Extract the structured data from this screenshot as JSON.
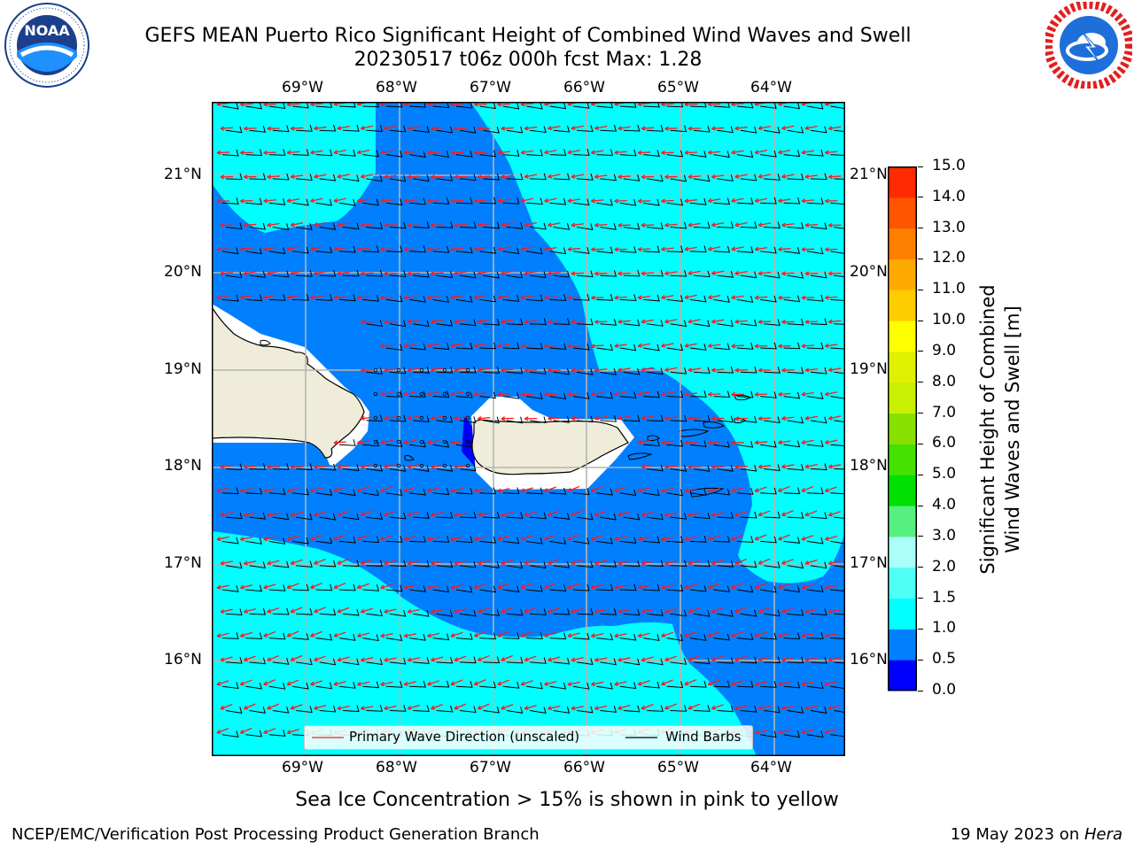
{
  "title": {
    "line1": "GEFS MEAN Puerto Rico Significant Height of Combined Wind Waves and Swell",
    "line2": "20230517 t06z 000h fcst   Max: 1.28"
  },
  "logos": {
    "noaa": {
      "text": "NOAA",
      "ring_text": "NATIONAL OCEANIC AND ATMOSPHERIC ADMINISTRATION · U.S. DEPARTMENT OF COMMERCE",
      "icon": "noaa-logo"
    },
    "nws": {
      "ring_text": "NATIONAL WEATHER SERVICE",
      "icon": "nws-logo"
    }
  },
  "map": {
    "lon_labels": [
      "69°W",
      "68°W",
      "67°W",
      "66°W",
      "65°W",
      "64°W"
    ],
    "lat_labels": [
      "21°N",
      "20°N",
      "19°N",
      "18°N",
      "17°N",
      "16°N"
    ],
    "colors": {
      "band_0_0_5": "#0000ff",
      "band_0_5_1_0": "#0080ff",
      "band_1_0_1_5": "#00ffff",
      "land": "#efedd9",
      "gridline": "#b4b4b4",
      "wave_arrow": "#ff1a1a",
      "wind_barb": "#000000"
    },
    "legend": {
      "primary_wave": "Primary Wave Direction (unscaled)",
      "wind_barbs": "Wind Barbs"
    }
  },
  "colorbar": {
    "label_line1": "Significant Height of Combined",
    "label_line2": "Wind Waves and Swell [m]",
    "ticks": [
      "0.0",
      "0.5",
      "1.0",
      "1.5",
      "2.0",
      "3.0",
      "4.0",
      "5.0",
      "6.0",
      "7.0",
      "8.0",
      "9.0",
      "10.0",
      "11.0",
      "12.0",
      "13.0",
      "14.0",
      "15.0"
    ],
    "colors": [
      "#0000ff",
      "#0080ff",
      "#00ffff",
      "#4dfff5",
      "#aafff8",
      "#55f07f",
      "#00e000",
      "#44e000",
      "#88e000",
      "#c8f000",
      "#e0f000",
      "#ffff00",
      "#ffcc00",
      "#ffaa00",
      "#ff8000",
      "#ff5500",
      "#ff2a00",
      "#ff0000"
    ]
  },
  "bottom_note": "Sea Ice Concentration > 15% is shown in pink to yellow",
  "footer": {
    "left": "NCEP/EMC/Verification Post Processing Product Generation Branch",
    "right_date": "19 May 2023 on ",
    "right_host": "Hera"
  }
}
